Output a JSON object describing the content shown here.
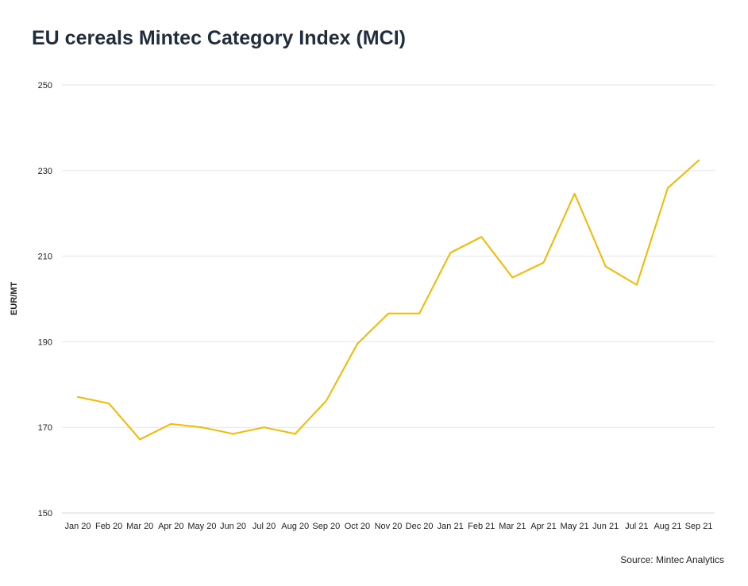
{
  "chart_data": {
    "type": "line",
    "title": "EU cereals Mintec Category Index (MCI)",
    "xlabel": "",
    "ylabel": "EUR/MT",
    "source": "Source: Mintec Analytics",
    "ylim": [
      150,
      250
    ],
    "yticks": [
      150,
      170,
      190,
      210,
      230,
      250
    ],
    "grid": true,
    "categories": [
      "Jan 20",
      "Feb 20",
      "Mar 20",
      "Apr 20",
      "May 20",
      "Jun 20",
      "Jul 20",
      "Aug 20",
      "Sep 20",
      "Oct 20",
      "Nov 20",
      "Dec 20",
      "Jan 21",
      "Feb 21",
      "Mar 21",
      "Apr 21",
      "May 21",
      "Jun 21",
      "Jul 21",
      "Aug 21",
      "Sep 21"
    ],
    "series": [
      {
        "color": "#F5B800",
        "values": [
          177.1,
          175.6,
          167.2,
          170.8,
          170.0,
          168.5,
          170.0,
          168.5,
          176.2,
          189.5,
          196.6,
          196.6,
          210.8,
          214.5,
          205.0,
          208.5,
          224.6,
          207.6,
          203.3,
          225.9,
          232.4
        ]
      }
    ]
  }
}
